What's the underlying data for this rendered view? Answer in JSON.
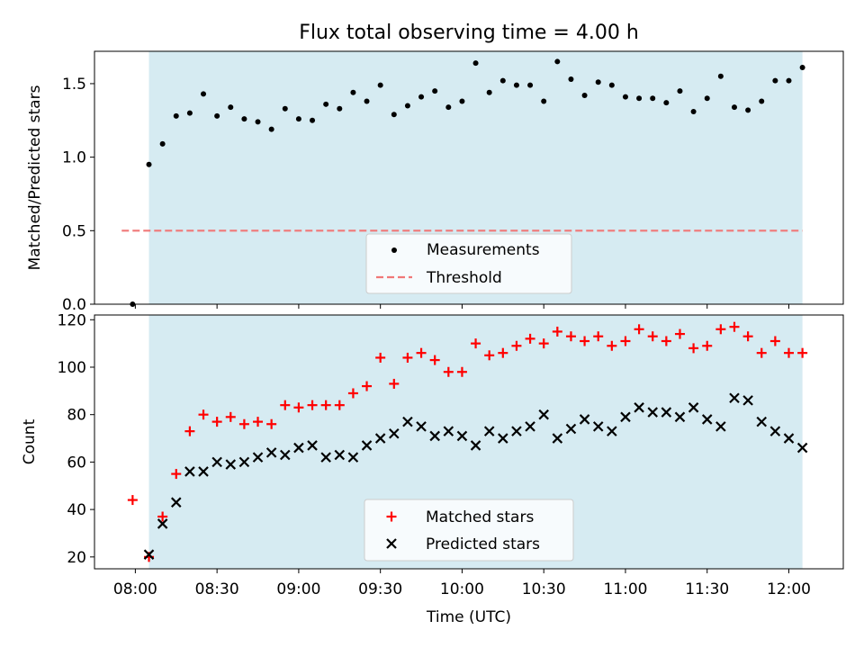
{
  "chart_data": [
    {
      "type": "scatter",
      "title": "Flux total observing time = 4.00 h",
      "xlabel": "",
      "ylabel": "Matched/Predicted stars",
      "ylim": [
        0,
        1.72
      ],
      "yticks": [
        0.0,
        0.5,
        1.0,
        1.5
      ],
      "ytick_labels": [
        "0.0",
        "0.5",
        "1.0",
        "1.5"
      ],
      "shaded_span_minutes": [
        5,
        245
      ],
      "legend_position": "lower-center",
      "threshold": {
        "name": "Threshold",
        "value": 0.5,
        "x_range_minutes": [
          -5,
          245
        ],
        "color": "#f07878"
      },
      "series": [
        {
          "name": "Measurements",
          "marker": "dot",
          "color": "#000000",
          "x_minutes": [
            -1,
            5,
            10,
            15,
            20,
            25,
            30,
            35,
            40,
            45,
            50,
            55,
            60,
            65,
            70,
            75,
            80,
            85,
            90,
            95,
            100,
            105,
            110,
            115,
            120,
            125,
            130,
            135,
            140,
            145,
            150,
            155,
            160,
            165,
            170,
            175,
            180,
            185,
            190,
            195,
            200,
            205,
            210,
            215,
            220,
            225,
            230,
            235,
            240,
            245
          ],
          "values": [
            0.0,
            0.95,
            1.09,
            1.28,
            1.3,
            1.43,
            1.28,
            1.34,
            1.26,
            1.24,
            1.19,
            1.33,
            1.26,
            1.25,
            1.36,
            1.33,
            1.44,
            1.38,
            1.49,
            1.29,
            1.35,
            1.41,
            1.45,
            1.34,
            1.38,
            1.64,
            1.44,
            1.52,
            1.49,
            1.49,
            1.38,
            1.65,
            1.53,
            1.42,
            1.51,
            1.49,
            1.41,
            1.4,
            1.4,
            1.37,
            1.45,
            1.31,
            1.4,
            1.55,
            1.34,
            1.32,
            1.38,
            1.52,
            1.52,
            1.61
          ]
        }
      ]
    },
    {
      "type": "scatter",
      "title": "",
      "xlabel": "Time (UTC)",
      "ylabel": "Count",
      "ylim": [
        15,
        122
      ],
      "yticks": [
        20,
        40,
        60,
        80,
        100,
        120
      ],
      "ytick_labels": [
        "20",
        "40",
        "60",
        "80",
        "100",
        "120"
      ],
      "xlim_minutes": [
        -15,
        260
      ],
      "xticks_minutes": [
        0,
        30,
        60,
        90,
        120,
        150,
        180,
        210,
        240
      ],
      "xtick_labels": [
        "08:00",
        "08:30",
        "09:00",
        "09:30",
        "10:00",
        "10:30",
        "11:00",
        "11:30",
        "12:00"
      ],
      "shaded_span_minutes": [
        5,
        245
      ],
      "legend_position": "lower-center",
      "series": [
        {
          "name": "Matched stars",
          "marker": "plus",
          "color": "#ff0000",
          "x_minutes": [
            -1,
            5,
            10,
            15,
            20,
            25,
            30,
            35,
            40,
            45,
            50,
            55,
            60,
            65,
            70,
            75,
            80,
            85,
            90,
            95,
            100,
            105,
            110,
            115,
            120,
            125,
            130,
            135,
            140,
            145,
            150,
            155,
            160,
            165,
            170,
            175,
            180,
            185,
            190,
            195,
            200,
            205,
            210,
            215,
            220,
            225,
            230,
            235,
            240,
            245
          ],
          "values": [
            44,
            20,
            37,
            55,
            73,
            80,
            77,
            79,
            76,
            77,
            76,
            84,
            83,
            84,
            84,
            84,
            89,
            92,
            104,
            93,
            104,
            106,
            103,
            98,
            98,
            110,
            105,
            106,
            109,
            112,
            110,
            115,
            113,
            111,
            113,
            109,
            111,
            116,
            113,
            111,
            114,
            108,
            109,
            116,
            117,
            113,
            106,
            111,
            106,
            106
          ]
        },
        {
          "name": "Predicted stars",
          "marker": "x",
          "color": "#000000",
          "x_minutes": [
            5,
            10,
            15,
            20,
            25,
            30,
            35,
            40,
            45,
            50,
            55,
            60,
            65,
            70,
            75,
            80,
            85,
            90,
            95,
            100,
            105,
            110,
            115,
            120,
            125,
            130,
            135,
            140,
            145,
            150,
            155,
            160,
            165,
            170,
            175,
            180,
            185,
            190,
            195,
            200,
            205,
            210,
            215,
            220,
            225,
            230,
            235,
            240,
            245
          ],
          "values": [
            21,
            34,
            43,
            56,
            56,
            60,
            59,
            60,
            62,
            64,
            63,
            66,
            67,
            62,
            63,
            62,
            67,
            70,
            72,
            77,
            75,
            71,
            73,
            71,
            67,
            73,
            70,
            73,
            75,
            80,
            70,
            74,
            78,
            75,
            73,
            79,
            83,
            81,
            81,
            79,
            83,
            78,
            75,
            87,
            86,
            77,
            73,
            70,
            66
          ]
        }
      ]
    }
  ]
}
